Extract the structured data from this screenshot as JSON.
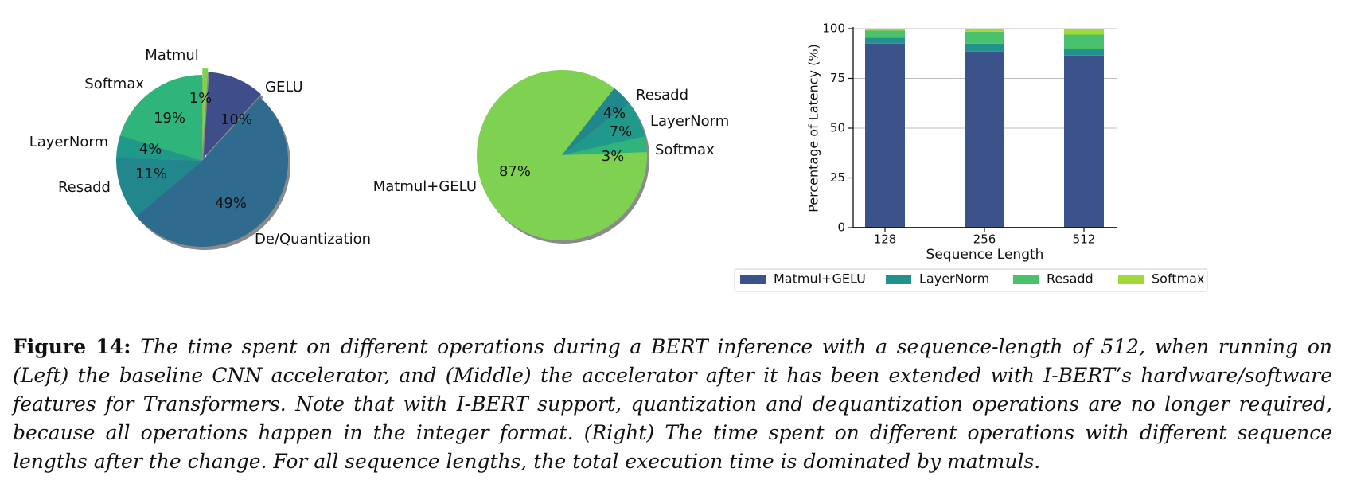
{
  "chart_data": [
    {
      "type": "pie",
      "slices": [
        {
          "label": "Matmul",
          "value": 1,
          "pct_label": "1%",
          "color": "#7ed151"
        },
        {
          "label": "GELU",
          "value": 10,
          "pct_label": "10%",
          "color": "#3d4e8a"
        },
        {
          "label": "De/Quantization",
          "value": 49,
          "pct_label": "49%",
          "color": "#2f6b8e"
        },
        {
          "label": "Resadd",
          "value": 11,
          "pct_label": "11%",
          "color": "#22878d"
        },
        {
          "label": "LayerNorm",
          "value": 4,
          "pct_label": "4%",
          "color": "#1f9a8a"
        },
        {
          "label": "Softmax",
          "value": 19,
          "pct_label": "19%",
          "color": "#2fb47c"
        }
      ],
      "exploded": [
        "Matmul",
        "GELU"
      ]
    },
    {
      "type": "pie",
      "slices": [
        {
          "label": "Resadd",
          "value": 4,
          "pct_label": "4%",
          "color": "#22878d"
        },
        {
          "label": "LayerNorm",
          "value": 7,
          "pct_label": "7%",
          "color": "#1f9a8a"
        },
        {
          "label": "Softmax",
          "value": 3,
          "pct_label": "3%",
          "color": "#2fb47c"
        },
        {
          "label": "Matmul+GELU",
          "value": 87,
          "pct_label": "87%",
          "color": "#7ed151"
        }
      ]
    },
    {
      "type": "bar",
      "stacked": true,
      "categories": [
        "128",
        "256",
        "512"
      ],
      "xlabel": "Sequence Length",
      "ylabel": "Percentage of Latency (%)",
      "ylim": [
        0,
        100
      ],
      "yticks": [
        0,
        25,
        50,
        75,
        100
      ],
      "grid": true,
      "legend_position": "bottom",
      "series": [
        {
          "name": "Matmul+GELU",
          "values": [
            92.5,
            88.5,
            86.5
          ],
          "color": "#3b528b"
        },
        {
          "name": "LayerNorm",
          "values": [
            3,
            4,
            3.5
          ],
          "color": "#21918c"
        },
        {
          "name": "Resadd",
          "values": [
            3.5,
            6,
            7
          ],
          "color": "#4ac16d"
        },
        {
          "name": "Softmax",
          "values": [
            1,
            1.5,
            3
          ],
          "color": "#a0da39"
        }
      ]
    }
  ],
  "caption": {
    "lead": "Figure 14:",
    "text": "The time spent on different operations during a BERT inference with a sequence-length of 512, when running on (Left) the baseline CNN accelerator, and (Middle) the accelerator after it has been extended with I-BERT’s hardware/software features for Transformers. Note that with I-BERT support, quantization and dequantization operations are no longer required, because all operations happen in the integer format. (Right) The time spent on different operations with different sequence lengths after the change. For all sequence lengths, the total execution time is dominated by matmuls."
  }
}
